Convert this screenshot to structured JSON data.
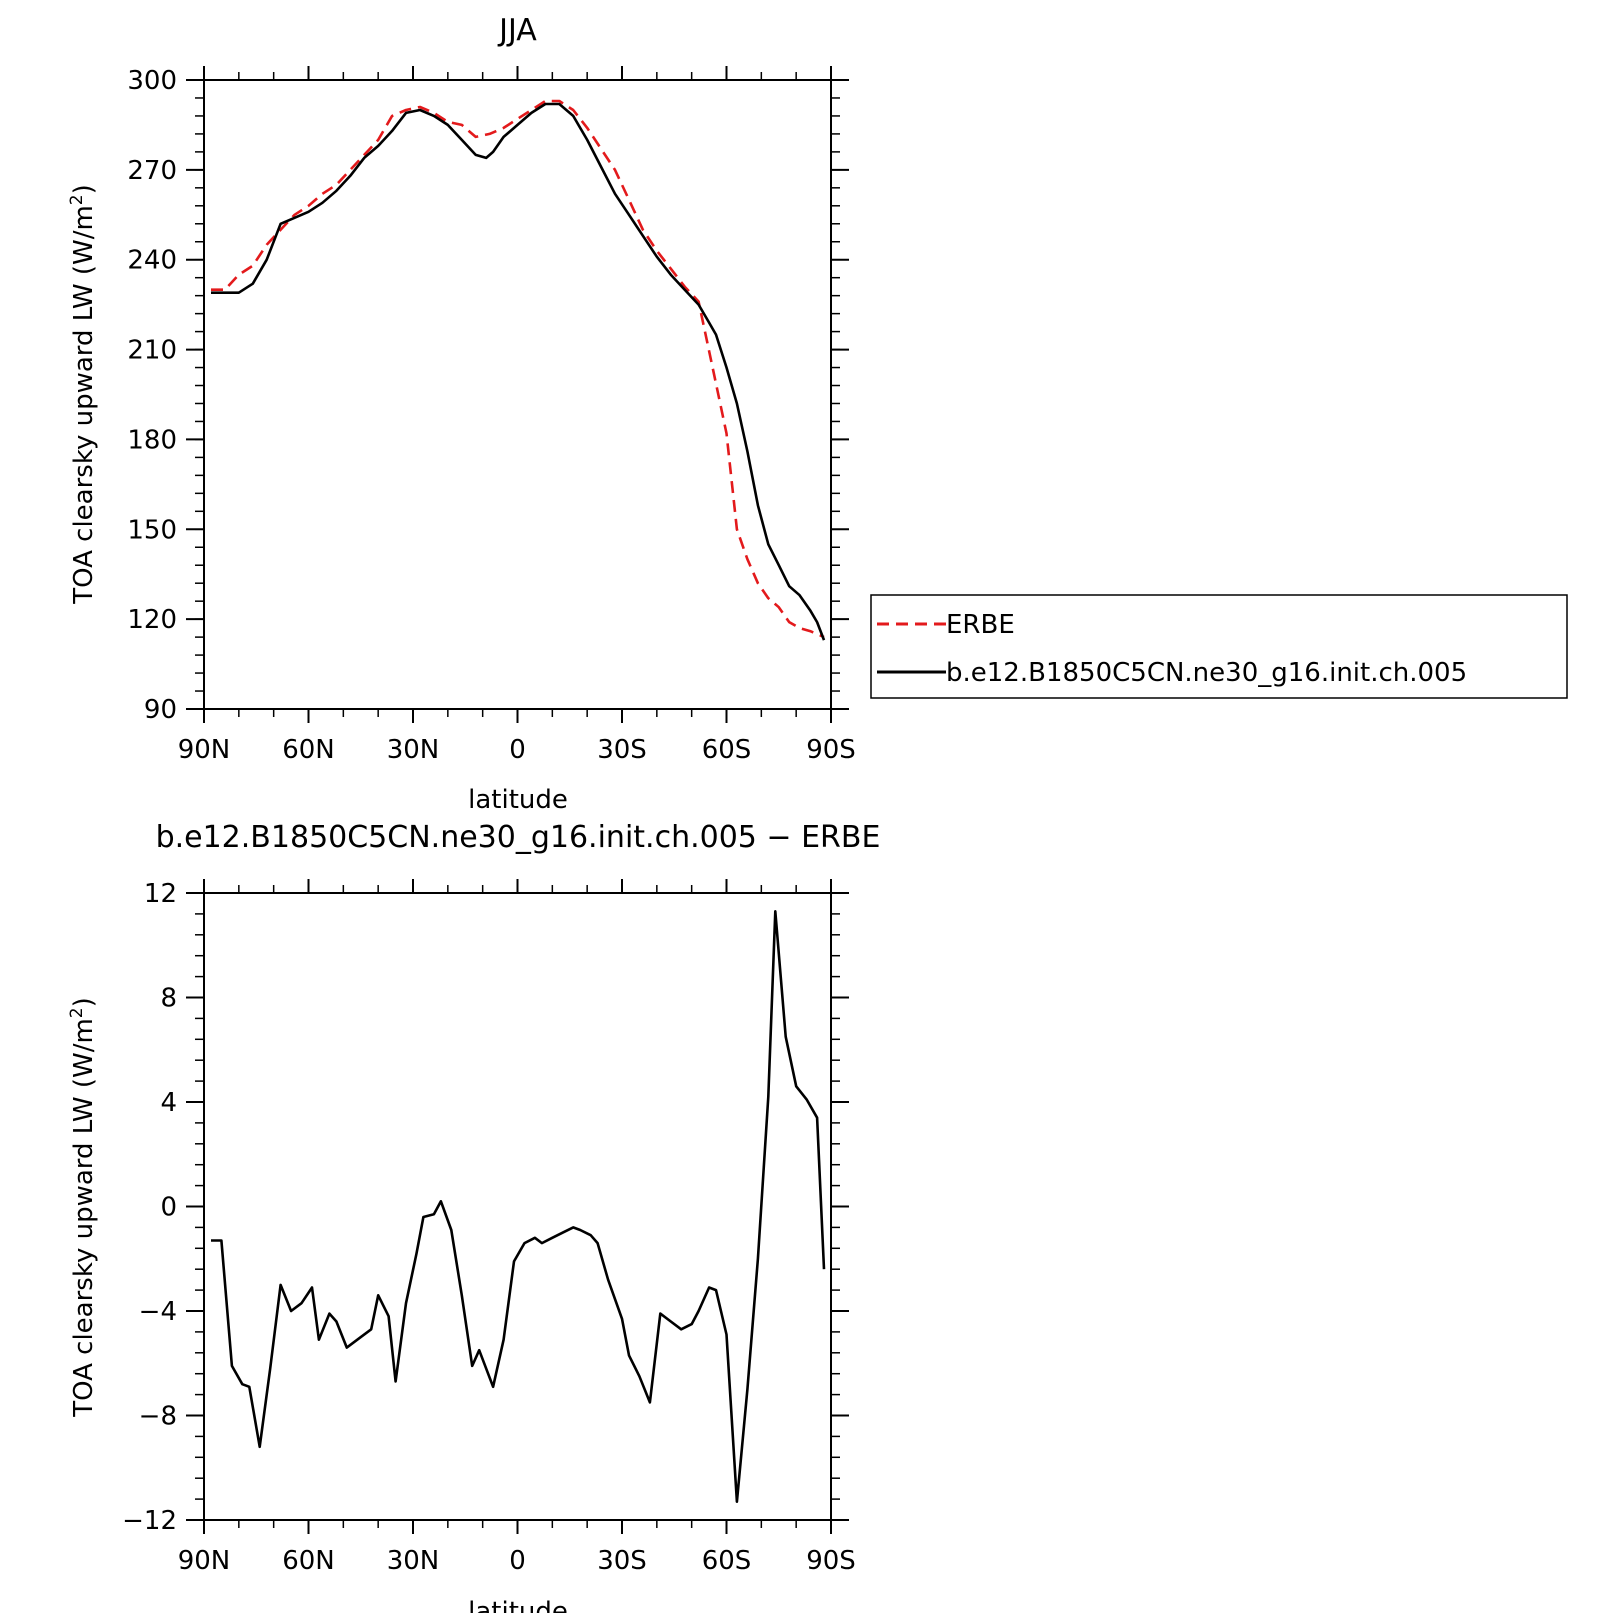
{
  "chart_data": [
    {
      "type": "line",
      "title": "JJA",
      "xlabel": "latitude",
      "ylabel": "TOA clearsky upward LW (W/m²)",
      "xlim": [
        90,
        -90
      ],
      "ylim": [
        90,
        300
      ],
      "xticks": [
        90,
        60,
        30,
        0,
        -30,
        -60,
        -90
      ],
      "xtick_labels": [
        "90N",
        "60N",
        "30N",
        "0",
        "30S",
        "60S",
        "90S"
      ],
      "yticks": [
        90,
        120,
        150,
        180,
        210,
        240,
        270,
        300
      ],
      "ytick_labels": [
        "90",
        "120",
        "150",
        "180",
        "210",
        "240",
        "270",
        "300"
      ],
      "grid": false,
      "legend_position": "right",
      "series": [
        {
          "name": "ERBE",
          "color": "#e31a1c",
          "dash": "dashed",
          "x": [
            88,
            86,
            84,
            80,
            76,
            72,
            68,
            64,
            60,
            56,
            52,
            48,
            44,
            40,
            36,
            32,
            28,
            24,
            20,
            16,
            12,
            8,
            4,
            0,
            -4,
            -8,
            -12,
            -16,
            -20,
            -24,
            -28,
            -32,
            -36,
            -40,
            -44,
            -48,
            -52,
            -56,
            -60,
            -63,
            -66,
            -69,
            -72,
            -75,
            -78,
            -81,
            -84,
            -86,
            -88
          ],
          "y": [
            230,
            230,
            230,
            235,
            238,
            245,
            250,
            255,
            258,
            262,
            265,
            270,
            275,
            280,
            288,
            290,
            291,
            289,
            286,
            285,
            281,
            282,
            284,
            287,
            290,
            293,
            293,
            290,
            284,
            277,
            270,
            260,
            250,
            243,
            237,
            231,
            226,
            204,
            182,
            150,
            140,
            132,
            127,
            124,
            119,
            117,
            116,
            115,
            114
          ],
          "note": "digitized"
        },
        {
          "name": "b.e12.B1850C5CN.ne30_g16.init.ch.005",
          "color": "#000000",
          "dash": "solid",
          "x": [
            88,
            84,
            80,
            76,
            72,
            68,
            64,
            60,
            56,
            52,
            48,
            44,
            40,
            36,
            32,
            28,
            24,
            20,
            16,
            12,
            9,
            7,
            4,
            0,
            -4,
            -8,
            -12,
            -16,
            -20,
            -24,
            -28,
            -32,
            -36,
            -40,
            -44,
            -48,
            -52,
            -55,
            -57,
            -60,
            -63,
            -66,
            -69,
            -72,
            -75,
            -78,
            -81,
            -84,
            -86,
            -88
          ],
          "y": [
            229,
            229,
            229,
            232,
            240,
            252,
            254,
            256,
            259,
            263,
            268,
            274,
            278,
            283,
            289,
            290,
            288,
            285,
            280,
            275,
            274,
            276,
            281,
            285,
            289,
            292,
            292,
            288,
            280,
            271,
            262,
            255,
            248,
            241,
            235,
            230,
            225,
            219,
            215,
            204,
            192,
            176,
            158,
            145,
            138,
            131,
            128,
            123,
            119,
            113
          ]
        }
      ]
    },
    {
      "type": "line",
      "title": "b.e12.B1850C5CN.ne30_g16.init.ch.005 − ERBE",
      "xlabel": "latitude",
      "ylabel": "TOA clearsky upward LW (W/m²)",
      "xlim": [
        90,
        -90
      ],
      "ylim": [
        -12,
        12
      ],
      "xticks": [
        90,
        60,
        30,
        0,
        -30,
        -60,
        -90
      ],
      "xtick_labels": [
        "90N",
        "60N",
        "30N",
        "0",
        "30S",
        "60S",
        "90S"
      ],
      "yticks": [
        -12,
        -8,
        -4,
        0,
        4,
        8,
        12
      ],
      "ytick_labels": [
        "−12",
        "−8",
        "−4",
        "0",
        "4",
        "8",
        "12"
      ],
      "grid": false,
      "series": [
        {
          "color": "#000000",
          "dash": "solid",
          "x": [
            88,
            85,
            82,
            79,
            77,
            74,
            71,
            68,
            65,
            62,
            59,
            57,
            54,
            52,
            49,
            45,
            42,
            40,
            37,
            35,
            32,
            29,
            27,
            24,
            22,
            19,
            16,
            13,
            11,
            7,
            4,
            1,
            -2,
            -5,
            -7,
            -10,
            -13,
            -16,
            -18,
            -21,
            -23,
            -26,
            -30,
            -32,
            -35,
            -38,
            -41,
            -44,
            -47,
            -50,
            -52,
            -55,
            -57,
            -60,
            -63,
            -66,
            -69,
            -72,
            -74,
            -77,
            -80,
            -83,
            -86,
            -88
          ],
          "y": [
            -1.3,
            -1.3,
            -6.1,
            -6.8,
            -6.9,
            -9.2,
            -6.2,
            -3.0,
            -4.0,
            -3.7,
            -3.1,
            -5.1,
            -4.1,
            -4.4,
            -5.4,
            -5.0,
            -4.7,
            -3.4,
            -4.2,
            -6.7,
            -3.7,
            -1.8,
            -0.4,
            -0.3,
            0.2,
            -0.9,
            -3.4,
            -6.1,
            -5.5,
            -6.9,
            -5.1,
            -2.1,
            -1.4,
            -1.2,
            -1.4,
            -1.2,
            -1.0,
            -0.8,
            -0.9,
            -1.1,
            -1.4,
            -2.8,
            -4.3,
            -5.7,
            -6.5,
            -7.5,
            -4.1,
            -4.4,
            -4.7,
            -4.5,
            -4.0,
            -3.1,
            -3.2,
            -4.9,
            -11.3,
            -7.0,
            -2.0,
            4.2,
            11.3,
            6.5,
            4.6,
            4.1,
            3.4,
            -2.4
          ]
        }
      ]
    }
  ],
  "legend": {
    "items": [
      {
        "label": "ERBE",
        "color": "#e31a1c",
        "dash": "dashed"
      },
      {
        "label": "b.e12.B1850C5CN.ne30_g16.init.ch.005",
        "color": "#000000",
        "dash": "solid"
      }
    ]
  },
  "labels": {
    "top_title": "JJA",
    "bottom_title": "b.e12.B1850C5CN.ne30_g16.init.ch.005 − ERBE",
    "xlabel": "latitude",
    "ylabel": "TOA clearsky upward LW (W/m²)"
  }
}
